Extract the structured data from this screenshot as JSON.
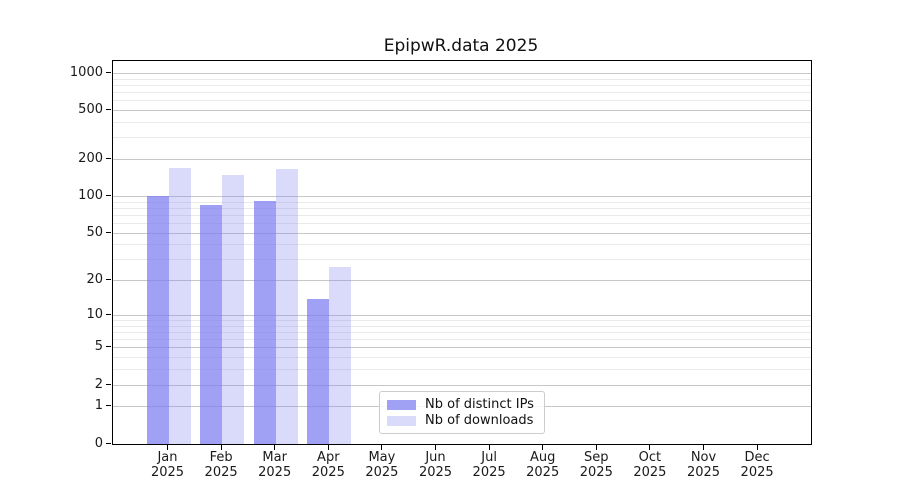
{
  "title": "EpipwR.data 2025",
  "chart_data": {
    "type": "bar",
    "title": "EpipwR.data 2025",
    "xlabel": "",
    "ylabel": "",
    "categories": [
      "Jan 2025",
      "Feb 2025",
      "Mar 2025",
      "Apr 2025",
      "May 2025",
      "Jun 2025",
      "Jul 2025",
      "Aug 2025",
      "Sep 2025",
      "Oct 2025",
      "Nov 2025",
      "Dec 2025"
    ],
    "series": [
      {
        "name": "Nb of distinct IPs",
        "values": [
          100,
          85,
          91,
          14,
          0,
          0,
          0,
          0,
          0,
          0,
          0,
          0
        ],
        "color": "rgba(123,123,240,0.72)"
      },
      {
        "name": "Nb of downloads",
        "values": [
          170,
          151,
          168,
          26,
          0,
          0,
          0,
          0,
          0,
          0,
          0,
          0
        ],
        "color": "rgba(123,123,240,0.28)"
      }
    ],
    "yscale": "log1p",
    "ylim": [
      0,
      1300
    ],
    "y_tick_values": [
      0,
      1,
      2,
      5,
      10,
      20,
      50,
      100,
      200,
      500,
      1000
    ],
    "y_tick_labels": [
      "0",
      "1",
      "2",
      "5",
      "10",
      "20",
      "50",
      "100",
      "200",
      "500",
      "1000"
    ],
    "y_minor_gridlines": [
      3,
      4,
      6,
      7,
      8,
      9,
      30,
      40,
      60,
      70,
      80,
      90,
      300,
      400,
      600,
      700,
      800,
      900
    ],
    "grid": "both",
    "legend_position": "lower-center"
  },
  "colors": {
    "background": "#ffffff",
    "bar_distinct_ips": "rgba(123,123,240,0.72)",
    "bar_downloads": "rgba(123,123,240,0.28)",
    "grid_major": "#c7c7c7",
    "grid_minor": "#eaeaea",
    "axis": "#000000",
    "text": "#1a1a1a",
    "legend_border": "#cccccc"
  }
}
